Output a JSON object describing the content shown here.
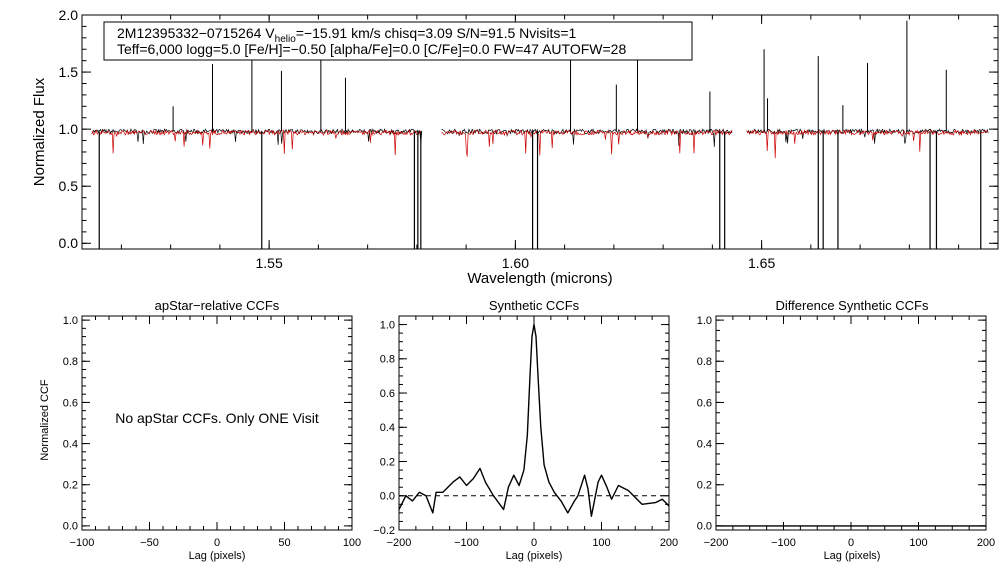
{
  "chart_data": [
    {
      "type": "line",
      "title": "",
      "xlabel": "Wavelength (microns)",
      "ylabel": "Normalized Flux",
      "xlim": [
        1.512,
        1.698
      ],
      "ylim": [
        -0.05,
        2.0
      ],
      "x_ticks": [
        "1.55",
        "1.60",
        "1.65"
      ],
      "y_ticks": [
        "0.0",
        "0.5",
        "1.0",
        "1.5",
        "2.0"
      ],
      "annotation": {
        "line1_prefix": "2M12395332−0715264  V",
        "line1_sub": "helio",
        "line1_suffix": "=−15.91 km/s  chisq=3.09  S/N=91.5  Nvisits=1",
        "line2": "Teff=6,000 logg=5.0 [Fe/H]=−0.50 [alpha/Fe]=0.0 [C/Fe]=0.0 FW=47 AUTOFW=28"
      },
      "chip_ranges": [
        [
          1.514,
          1.581
        ],
        [
          1.585,
          1.644
        ],
        [
          1.647,
          1.696
        ]
      ],
      "series": [
        {
          "role": "observed",
          "color": "#000000",
          "baseline": 0.98
        },
        {
          "role": "model",
          "color": "#cc0000",
          "baseline": 0.97
        }
      ],
      "dropouts": [
        1.5155,
        1.5485,
        1.5795,
        1.5802,
        1.5808,
        1.6035,
        1.6045,
        1.6415,
        1.6425,
        1.6615,
        1.6625,
        1.6655,
        1.6842,
        1.6855,
        1.6945
      ],
      "emission_spikes": [
        1.5305,
        1.5385,
        1.5465,
        1.5525,
        1.5605,
        1.5655,
        1.6112,
        1.6205,
        1.6248,
        1.6395,
        1.6505,
        1.6512,
        1.6615,
        1.6665,
        1.6715,
        1.6795,
        1.6875
      ]
    },
    {
      "type": "line",
      "title": "apStar−relative CCFs",
      "xlabel": "Lag (pixels)",
      "ylabel": "Normalized CCF",
      "xlim": [
        -100,
        100
      ],
      "ylim": [
        -0.02,
        1.02
      ],
      "x_ticks": [
        "−100",
        "−50",
        "0",
        "50",
        "100"
      ],
      "y_ticks": [
        "0.0",
        "0.2",
        "0.4",
        "0.6",
        "0.8",
        "1.0"
      ],
      "message": "No apStar CCFs.  Only ONE Visit",
      "series": []
    },
    {
      "type": "line",
      "title": "Synthetic CCFs",
      "xlabel": "Lag (pixels)",
      "ylabel": "",
      "xlim": [
        -200,
        200
      ],
      "ylim": [
        -0.2,
        1.05
      ],
      "x_ticks": [
        "−200",
        "−100",
        "0",
        "100",
        "200"
      ],
      "y_ticks": [
        "−0.2",
        "0.0",
        "0.2",
        "0.4",
        "0.6",
        "0.8",
        "1.0"
      ],
      "reference_line_y": 0.0,
      "series": [
        {
          "color": "#000000",
          "x": [
            -200,
            -190,
            -180,
            -170,
            -160,
            -150,
            -145,
            -135,
            -120,
            -110,
            -100,
            -90,
            -80,
            -72,
            -60,
            -45,
            -38,
            -30,
            -22,
            -15,
            -10,
            -6,
            -3,
            0,
            3,
            6,
            10,
            15,
            22,
            30,
            40,
            50,
            60,
            65,
            75,
            80,
            85,
            95,
            100,
            108,
            115,
            125,
            140,
            160,
            180,
            190,
            200
          ],
          "y": [
            -0.08,
            0.0,
            -0.03,
            0.02,
            0.0,
            -0.1,
            0.02,
            0.02,
            0.08,
            0.11,
            0.06,
            0.1,
            0.16,
            0.08,
            0.0,
            -0.08,
            0.05,
            0.12,
            0.06,
            0.15,
            0.35,
            0.7,
            0.93,
            1.0,
            0.93,
            0.7,
            0.4,
            0.18,
            0.08,
            0.02,
            -0.03,
            -0.1,
            -0.03,
            0.0,
            0.12,
            0.04,
            -0.12,
            0.08,
            0.12,
            0.05,
            -0.02,
            0.06,
            0.03,
            -0.05,
            -0.04,
            -0.02,
            -0.06
          ]
        }
      ]
    },
    {
      "type": "line",
      "title": "Difference Synthetic CCFs",
      "xlabel": "Lag (pixels)",
      "ylabel": "",
      "xlim": [
        -200,
        200
      ],
      "ylim": [
        -0.02,
        1.02
      ],
      "x_ticks": [
        "−200",
        "−100",
        "0",
        "100",
        "200"
      ],
      "y_ticks": [
        "0.0",
        "0.2",
        "0.4",
        "0.6",
        "0.8",
        "1.0"
      ],
      "series": [
        {
          "color": "#000000",
          "x": [
            -200,
            200
          ],
          "y": [
            0.0,
            0.0
          ]
        }
      ]
    }
  ]
}
